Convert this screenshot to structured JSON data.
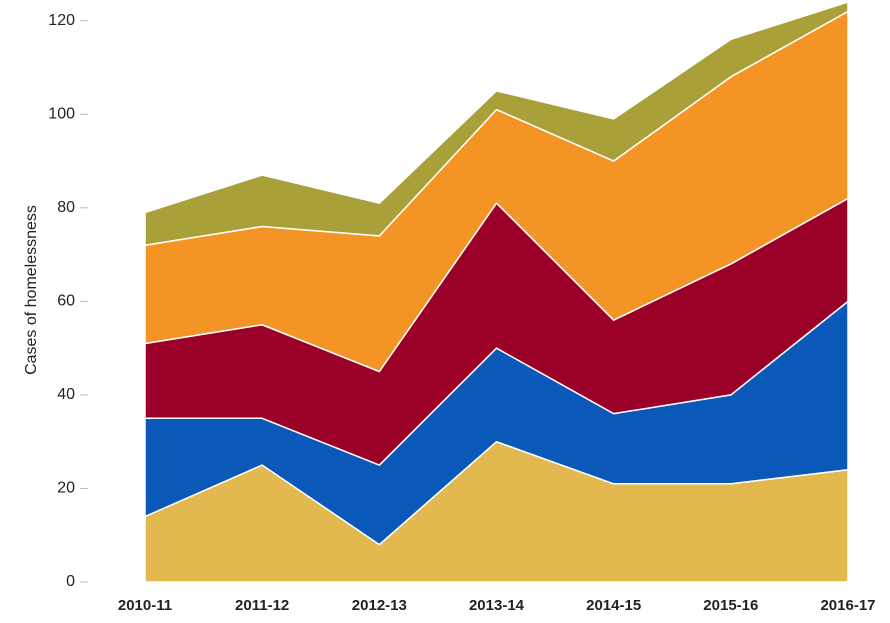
{
  "chart_data": {
    "type": "stacked_area",
    "y_label": "Cases of homelessness",
    "categories": [
      "2010-11",
      "2011-12",
      "2012-13",
      "2013-14",
      "2014-15",
      "2015-16",
      "2016-17"
    ],
    "series": [
      {
        "color": "#e3b94f",
        "values": [
          14,
          25,
          8,
          30,
          21,
          21,
          24
        ]
      },
      {
        "color": "#0a58b8",
        "values": [
          21,
          10,
          17,
          20,
          15,
          19,
          36
        ]
      },
      {
        "color": "#9b0029",
        "values": [
          16,
          20,
          20,
          31,
          20,
          28,
          22
        ]
      },
      {
        "color": "#f39424",
        "values": [
          21,
          21,
          29,
          20,
          34,
          40,
          40
        ]
      },
      {
        "color": "#a9a03a",
        "values": [
          7,
          11,
          7,
          4,
          9,
          8,
          2
        ]
      }
    ],
    "ylim": [
      0,
      124
    ],
    "yticks": [
      0,
      20,
      40,
      60,
      80,
      100,
      120
    ]
  }
}
